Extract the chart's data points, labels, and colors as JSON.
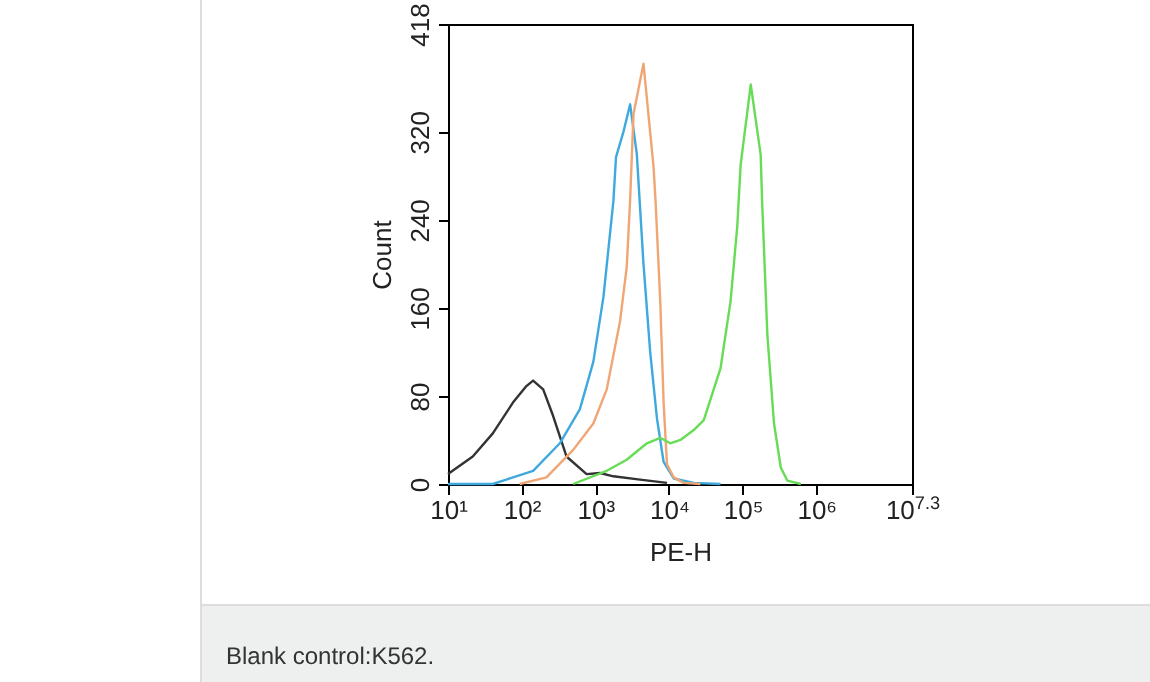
{
  "chart_data": {
    "type": "line",
    "xlabel": "PE-H",
    "ylabel": "Count",
    "log": "x",
    "grid": false,
    "legend": false,
    "marker": "none",
    "line_style": "solid",
    "xlim": [
      10,
      19952623
    ],
    "ylim": [
      0,
      418
    ],
    "xticks": [
      {
        "value": 10,
        "label": "10¹"
      },
      {
        "value": 100,
        "label": "10²"
      },
      {
        "value": 1000,
        "label": "10³"
      },
      {
        "value": 10000,
        "label": "10⁴"
      },
      {
        "value": 100000,
        "label": "10⁵"
      },
      {
        "value": 1000000,
        "label": "10⁶"
      },
      {
        "value": 19952623,
        "label": "10$^{7.3}$"
      }
    ],
    "yticks": [
      0,
      80,
      160,
      240,
      320,
      418
    ],
    "annotations": [
      "Blank control:K562."
    ],
    "series": [
      {
        "color": "#333333",
        "x": [
          10,
          21.7,
          40.6,
          76.2,
          116,
          143,
          196,
          267,
          406,
          762,
          1160,
          1760,
          4060,
          9400
        ],
        "values": [
          9,
          25,
          46,
          74,
          89,
          94,
          86,
          62,
          25,
          9,
          10,
          7,
          4,
          1
        ]
      },
      {
        "color": "#3fa9dd",
        "x": [
          10,
          40.6,
          61.8,
          143,
          330,
          618,
          940,
          1290,
          1760,
          1910,
          2410,
          2970,
          3660,
          4510,
          5560,
          6860,
          8460,
          11600,
          21700,
          50100
        ],
        "values": [
          0,
          0,
          4,
          12,
          37,
          68,
          111,
          170,
          257,
          297,
          320,
          345,
          300,
          200,
          120,
          60,
          20,
          5,
          1,
          0
        ]
      },
      {
        "color": "#f0a674",
        "x": [
          93.9,
          217,
          501,
          940,
          1430,
          2170,
          2670,
          2970,
          3300,
          4510,
          6180,
          6580,
          7620,
          8460,
          9400,
          11600,
          15800,
          26700
        ],
        "values": [
          0,
          6,
          31,
          55,
          86,
          148,
          197,
          258,
          336,
          382,
          288,
          257,
          166,
          74,
          18,
          6,
          1,
          0
        ]
      },
      {
        "color": "#66dd55",
        "x": [
          501,
          1430,
          2670,
          5010,
          7620,
          10400,
          14300,
          21700,
          29700,
          50100,
          68600,
          84600,
          94000,
          129000,
          176000,
          184000,
          217000,
          267000,
          330000,
          406000,
          618000
        ],
        "values": [
          0,
          12,
          22,
          37,
          42,
          37,
          40,
          49,
          58,
          105,
          166,
          234,
          290,
          363,
          299,
          257,
          135,
          55,
          15,
          3,
          0
        ]
      }
    ]
  }
}
